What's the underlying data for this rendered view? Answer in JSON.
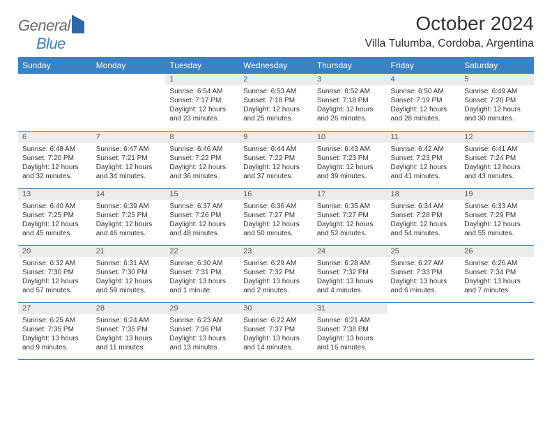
{
  "logo": {
    "text1": "General",
    "text2": "Blue"
  },
  "title": "October 2024",
  "location": "Villa Tulumba, Cordoba, Argentina",
  "colors": {
    "header_bg": "#3b82c4",
    "header_fg": "#ffffff",
    "daynum_bg": "#ececec",
    "border": "#3b82c4",
    "text": "#333333",
    "logo_gray": "#6b6b6b",
    "logo_blue": "#3b82c4"
  },
  "typography": {
    "title_fontsize": 28,
    "location_fontsize": 16,
    "header_fontsize": 12,
    "body_fontsize": 10
  },
  "weekdays": [
    "Sunday",
    "Monday",
    "Tuesday",
    "Wednesday",
    "Thursday",
    "Friday",
    "Saturday"
  ],
  "leading_blanks": 2,
  "days": [
    {
      "n": "1",
      "sunrise": "6:54 AM",
      "sunset": "7:17 PM",
      "daylight": "12 hours and 23 minutes."
    },
    {
      "n": "2",
      "sunrise": "6:53 AM",
      "sunset": "7:18 PM",
      "daylight": "12 hours and 25 minutes."
    },
    {
      "n": "3",
      "sunrise": "6:52 AM",
      "sunset": "7:18 PM",
      "daylight": "12 hours and 26 minutes."
    },
    {
      "n": "4",
      "sunrise": "6:50 AM",
      "sunset": "7:19 PM",
      "daylight": "12 hours and 28 minutes."
    },
    {
      "n": "5",
      "sunrise": "6:49 AM",
      "sunset": "7:20 PM",
      "daylight": "12 hours and 30 minutes."
    },
    {
      "n": "6",
      "sunrise": "6:48 AM",
      "sunset": "7:20 PM",
      "daylight": "12 hours and 32 minutes."
    },
    {
      "n": "7",
      "sunrise": "6:47 AM",
      "sunset": "7:21 PM",
      "daylight": "12 hours and 34 minutes."
    },
    {
      "n": "8",
      "sunrise": "6:46 AM",
      "sunset": "7:22 PM",
      "daylight": "12 hours and 36 minutes."
    },
    {
      "n": "9",
      "sunrise": "6:44 AM",
      "sunset": "7:22 PM",
      "daylight": "12 hours and 37 minutes."
    },
    {
      "n": "10",
      "sunrise": "6:43 AM",
      "sunset": "7:23 PM",
      "daylight": "12 hours and 39 minutes."
    },
    {
      "n": "11",
      "sunrise": "6:42 AM",
      "sunset": "7:23 PM",
      "daylight": "12 hours and 41 minutes."
    },
    {
      "n": "12",
      "sunrise": "6:41 AM",
      "sunset": "7:24 PM",
      "daylight": "12 hours and 43 minutes."
    },
    {
      "n": "13",
      "sunrise": "6:40 AM",
      "sunset": "7:25 PM",
      "daylight": "12 hours and 45 minutes."
    },
    {
      "n": "14",
      "sunrise": "6:39 AM",
      "sunset": "7:25 PM",
      "daylight": "12 hours and 46 minutes."
    },
    {
      "n": "15",
      "sunrise": "6:37 AM",
      "sunset": "7:26 PM",
      "daylight": "12 hours and 48 minutes."
    },
    {
      "n": "16",
      "sunrise": "6:36 AM",
      "sunset": "7:27 PM",
      "daylight": "12 hours and 50 minutes."
    },
    {
      "n": "17",
      "sunrise": "6:35 AM",
      "sunset": "7:27 PM",
      "daylight": "12 hours and 52 minutes."
    },
    {
      "n": "18",
      "sunrise": "6:34 AM",
      "sunset": "7:28 PM",
      "daylight": "12 hours and 54 minutes."
    },
    {
      "n": "19",
      "sunrise": "6:33 AM",
      "sunset": "7:29 PM",
      "daylight": "12 hours and 55 minutes."
    },
    {
      "n": "20",
      "sunrise": "6:32 AM",
      "sunset": "7:30 PM",
      "daylight": "12 hours and 57 minutes."
    },
    {
      "n": "21",
      "sunrise": "6:31 AM",
      "sunset": "7:30 PM",
      "daylight": "12 hours and 59 minutes."
    },
    {
      "n": "22",
      "sunrise": "6:30 AM",
      "sunset": "7:31 PM",
      "daylight": "13 hours and 1 minute."
    },
    {
      "n": "23",
      "sunrise": "6:29 AM",
      "sunset": "7:32 PM",
      "daylight": "13 hours and 2 minutes."
    },
    {
      "n": "24",
      "sunrise": "6:28 AM",
      "sunset": "7:32 PM",
      "daylight": "13 hours and 4 minutes."
    },
    {
      "n": "25",
      "sunrise": "6:27 AM",
      "sunset": "7:33 PM",
      "daylight": "13 hours and 6 minutes."
    },
    {
      "n": "26",
      "sunrise": "6:26 AM",
      "sunset": "7:34 PM",
      "daylight": "13 hours and 7 minutes."
    },
    {
      "n": "27",
      "sunrise": "6:25 AM",
      "sunset": "7:35 PM",
      "daylight": "13 hours and 9 minutes."
    },
    {
      "n": "28",
      "sunrise": "6:24 AM",
      "sunset": "7:35 PM",
      "daylight": "13 hours and 11 minutes."
    },
    {
      "n": "29",
      "sunrise": "6:23 AM",
      "sunset": "7:36 PM",
      "daylight": "13 hours and 13 minutes."
    },
    {
      "n": "30",
      "sunrise": "6:22 AM",
      "sunset": "7:37 PM",
      "daylight": "13 hours and 14 minutes."
    },
    {
      "n": "31",
      "sunrise": "6:21 AM",
      "sunset": "7:38 PM",
      "daylight": "13 hours and 16 minutes."
    }
  ],
  "labels": {
    "sunrise": "Sunrise:",
    "sunset": "Sunset:",
    "daylight": "Daylight:"
  }
}
